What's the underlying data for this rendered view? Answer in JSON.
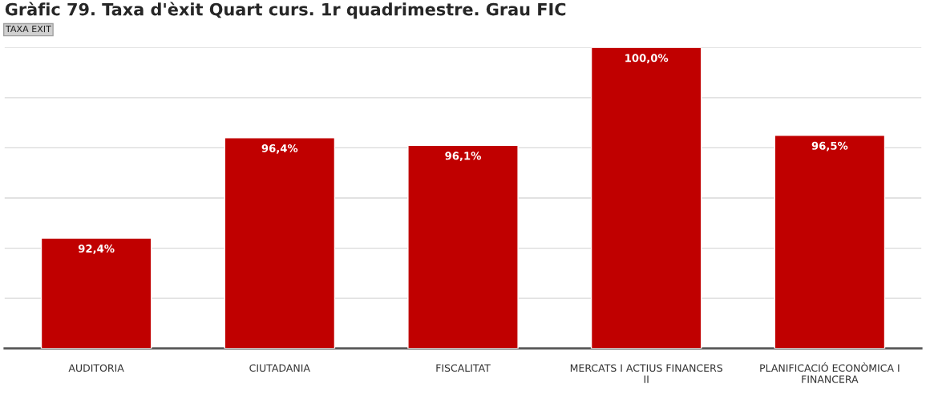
{
  "chart_data": {
    "type": "bar",
    "title": "Gràfic 79. Taxa d'èxit Quart curs. 1r quadrimestre. Grau FIC",
    "annotations": [
      "TAXA EXIT"
    ],
    "categories": [
      "AUDITORIA",
      "CIUTADANIA",
      "FISCALITAT",
      "MERCATS I ACTIUS FINANCERS II",
      "PLANIFICACIÓ ECONÒMICA I FINANCERA"
    ],
    "values": [
      92.4,
      96.4,
      96.1,
      100.0,
      96.5
    ],
    "value_labels": [
      "92,4%",
      "96,4%",
      "96,1%",
      "100,0%",
      "96,5%"
    ],
    "color": "#c00000",
    "ylim": [
      88,
      100
    ],
    "yticks": [
      {
        "value": 88,
        "label": null
      },
      {
        "value": 90,
        "label": null
      },
      {
        "value": 92,
        "label": null
      },
      {
        "value": 94,
        "label": null
      },
      {
        "value": 96,
        "label": null
      },
      {
        "value": 98,
        "label": null
      },
      {
        "value": 100,
        "label": null
      }
    ],
    "grid": "y",
    "tick_labels": "x",
    "legend": false
  }
}
